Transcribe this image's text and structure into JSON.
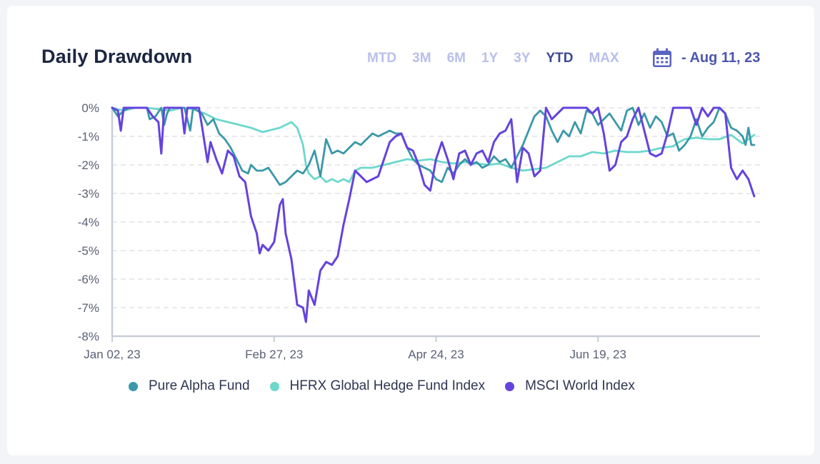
{
  "header": {
    "title": "Daily Drawdown",
    "ranges": [
      "MTD",
      "3M",
      "6M",
      "1Y",
      "3Y",
      "YTD",
      "MAX"
    ],
    "active_range": "YTD",
    "date_label": "- Aug 11, 23"
  },
  "colors": {
    "pure_alpha": "#3a98a8",
    "hfrx": "#6dd8cc",
    "msci": "#6543dd",
    "range_inactive": "#b9c0ea",
    "range_active": "#3b4a8f",
    "calendar_icon": "#5a63c0",
    "grid": "#d9dce4",
    "axis": "#c7ccd6"
  },
  "chart_data": {
    "type": "line",
    "ylim": [
      -8,
      0
    ],
    "y_ticks": [
      0,
      -1,
      -2,
      -3,
      -4,
      -5,
      -6,
      -7,
      -8
    ],
    "y_tick_labels": [
      "0%",
      "-1%",
      "-2%",
      "-3%",
      "-4%",
      "-5%",
      "-6%",
      "-7%",
      "-8%"
    ],
    "x_ticks": [
      {
        "label": "Jan 02, 23",
        "day": 0
      },
      {
        "label": "Feb 27, 23",
        "day": 56
      },
      {
        "label": "Apr 24, 23",
        "day": 112
      },
      {
        "label": "Jun 19, 23",
        "day": 168
      }
    ],
    "x_range": [
      0,
      224
    ],
    "grid": true,
    "legend_position": "bottom",
    "series": [
      {
        "name": "Pure Alpha Fund",
        "points": [
          [
            0,
            0
          ],
          [
            2,
            -0.3
          ],
          [
            4,
            -0.1
          ],
          [
            6,
            0
          ],
          [
            9,
            0
          ],
          [
            12,
            0
          ],
          [
            13,
            -0.4
          ],
          [
            15,
            -0.3
          ],
          [
            17,
            0
          ],
          [
            18,
            -0.6
          ],
          [
            19,
            -0.2
          ],
          [
            20,
            0
          ],
          [
            22,
            0
          ],
          [
            25,
            0
          ],
          [
            27,
            -0.8
          ],
          [
            28,
            0
          ],
          [
            31,
            -0.2
          ],
          [
            33,
            -0.6
          ],
          [
            35,
            -0.4
          ],
          [
            37,
            -0.9
          ],
          [
            39,
            -1.1
          ],
          [
            41,
            -1.4
          ],
          [
            43,
            -1.8
          ],
          [
            45,
            -2.2
          ],
          [
            47,
            -2.3
          ],
          [
            48,
            -2.0
          ],
          [
            50,
            -2.2
          ],
          [
            52,
            -2.2
          ],
          [
            54,
            -2.1
          ],
          [
            56,
            -2.4
          ],
          [
            58,
            -2.7
          ],
          [
            60,
            -2.6
          ],
          [
            62,
            -2.4
          ],
          [
            64,
            -2.2
          ],
          [
            66,
            -2.3
          ],
          [
            68,
            -2.0
          ],
          [
            70,
            -1.5
          ],
          [
            72,
            -2.4
          ],
          [
            74,
            -1.1
          ],
          [
            76,
            -1.6
          ],
          [
            78,
            -1.5
          ],
          [
            80,
            -1.6
          ],
          [
            82,
            -1.4
          ],
          [
            84,
            -1.2
          ],
          [
            86,
            -1.3
          ],
          [
            88,
            -1.1
          ],
          [
            90,
            -0.9
          ],
          [
            92,
            -1.0
          ],
          [
            94,
            -0.9
          ],
          [
            96,
            -0.8
          ],
          [
            98,
            -0.9
          ],
          [
            100,
            -0.9
          ],
          [
            102,
            -1.4
          ],
          [
            104,
            -1.8
          ],
          [
            106,
            -2.0
          ],
          [
            108,
            -2.1
          ],
          [
            110,
            -2.2
          ],
          [
            112,
            -2.5
          ],
          [
            114,
            -2.6
          ],
          [
            116,
            -2.1
          ],
          [
            118,
            -2.3
          ],
          [
            120,
            -2.0
          ],
          [
            122,
            -1.8
          ],
          [
            124,
            -2.0
          ],
          [
            126,
            -1.9
          ],
          [
            128,
            -2.1
          ],
          [
            130,
            -2.0
          ],
          [
            132,
            -1.7
          ],
          [
            134,
            -1.9
          ],
          [
            136,
            -1.8
          ],
          [
            138,
            -2.1
          ],
          [
            140,
            -1.7
          ],
          [
            142,
            -1.3
          ],
          [
            144,
            -0.8
          ],
          [
            146,
            -0.3
          ],
          [
            148,
            -0.1
          ],
          [
            150,
            -0.3
          ],
          [
            152,
            -0.8
          ],
          [
            154,
            -1.2
          ],
          [
            156,
            -0.8
          ],
          [
            158,
            -1.0
          ],
          [
            160,
            -0.5
          ],
          [
            162,
            -0.9
          ],
          [
            164,
            -0.1
          ],
          [
            166,
            -0.2
          ],
          [
            168,
            -0.6
          ],
          [
            170,
            -0.4
          ],
          [
            172,
            -0.2
          ],
          [
            174,
            -0.5
          ],
          [
            176,
            -0.8
          ],
          [
            178,
            -0.1
          ],
          [
            180,
            0
          ],
          [
            182,
            -0.6
          ],
          [
            184,
            -0.2
          ],
          [
            186,
            -0.7
          ],
          [
            188,
            -0.3
          ],
          [
            190,
            -0.5
          ],
          [
            192,
            -1.0
          ],
          [
            194,
            -0.9
          ],
          [
            196,
            -1.5
          ],
          [
            198,
            -1.3
          ],
          [
            200,
            -1.0
          ],
          [
            202,
            -0.4
          ],
          [
            204,
            -1.0
          ],
          [
            206,
            -0.7
          ],
          [
            208,
            -0.5
          ],
          [
            210,
            0
          ],
          [
            212,
            -0.2
          ],
          [
            214,
            -0.7
          ],
          [
            216,
            -0.8
          ],
          [
            218,
            -1.0
          ],
          [
            219,
            -1.3
          ],
          [
            220,
            -0.7
          ],
          [
            221,
            -1.3
          ],
          [
            222,
            -1.3
          ]
        ]
      },
      {
        "name": "HFRX Global Hedge Fund Index",
        "points": [
          [
            0,
            0
          ],
          [
            4,
            -0.1
          ],
          [
            8,
            0
          ],
          [
            12,
            0
          ],
          [
            16,
            -0.05
          ],
          [
            20,
            -0.1
          ],
          [
            24,
            0
          ],
          [
            28,
            -0.05
          ],
          [
            32,
            -0.2
          ],
          [
            36,
            -0.4
          ],
          [
            40,
            -0.5
          ],
          [
            44,
            -0.6
          ],
          [
            48,
            -0.7
          ],
          [
            52,
            -0.85
          ],
          [
            54,
            -0.8
          ],
          [
            56,
            -0.75
          ],
          [
            58,
            -0.7
          ],
          [
            60,
            -0.6
          ],
          [
            62,
            -0.5
          ],
          [
            64,
            -0.7
          ],
          [
            66,
            -1.3
          ],
          [
            67,
            -2.0
          ],
          [
            68,
            -2.3
          ],
          [
            70,
            -2.5
          ],
          [
            72,
            -2.4
          ],
          [
            74,
            -2.6
          ],
          [
            76,
            -2.5
          ],
          [
            78,
            -2.6
          ],
          [
            80,
            -2.5
          ],
          [
            82,
            -2.6
          ],
          [
            84,
            -2.2
          ],
          [
            86,
            -2.1
          ],
          [
            90,
            -2.1
          ],
          [
            94,
            -2.0
          ],
          [
            98,
            -1.9
          ],
          [
            102,
            -1.8
          ],
          [
            106,
            -1.85
          ],
          [
            110,
            -1.8
          ],
          [
            114,
            -1.9
          ],
          [
            118,
            -1.95
          ],
          [
            122,
            -1.9
          ],
          [
            126,
            -1.95
          ],
          [
            130,
            -2.0
          ],
          [
            134,
            -1.95
          ],
          [
            138,
            -2.1
          ],
          [
            142,
            -2.2
          ],
          [
            146,
            -2.15
          ],
          [
            150,
            -2.1
          ],
          [
            154,
            -1.9
          ],
          [
            158,
            -1.7
          ],
          [
            162,
            -1.7
          ],
          [
            166,
            -1.55
          ],
          [
            170,
            -1.6
          ],
          [
            174,
            -1.5
          ],
          [
            178,
            -1.55
          ],
          [
            182,
            -1.55
          ],
          [
            186,
            -1.5
          ],
          [
            190,
            -1.4
          ],
          [
            194,
            -1.35
          ],
          [
            196,
            -1.2
          ],
          [
            198,
            -1.1
          ],
          [
            202,
            -1.05
          ],
          [
            206,
            -1.1
          ],
          [
            210,
            -1.1
          ],
          [
            214,
            -0.95
          ],
          [
            218,
            -1.25
          ],
          [
            222,
            -0.95
          ]
        ]
      },
      {
        "name": "MSCI World Index",
        "points": [
          [
            0,
            0
          ],
          [
            2,
            -0.1
          ],
          [
            3,
            -0.8
          ],
          [
            4,
            0
          ],
          [
            8,
            0
          ],
          [
            12,
            0
          ],
          [
            14,
            -0.3
          ],
          [
            16,
            -0.5
          ],
          [
            17,
            -1.6
          ],
          [
            18,
            0
          ],
          [
            20,
            0
          ],
          [
            24,
            0
          ],
          [
            25,
            -0.9
          ],
          [
            26,
            0
          ],
          [
            30,
            0
          ],
          [
            31,
            -0.6
          ],
          [
            33,
            -1.9
          ],
          [
            34,
            -1.2
          ],
          [
            36,
            -1.8
          ],
          [
            38,
            -2.3
          ],
          [
            40,
            -1.5
          ],
          [
            42,
            -1.7
          ],
          [
            44,
            -2.4
          ],
          [
            46,
            -2.6
          ],
          [
            48,
            -3.8
          ],
          [
            50,
            -4.4
          ],
          [
            51,
            -5.1
          ],
          [
            52,
            -4.8
          ],
          [
            54,
            -5.0
          ],
          [
            56,
            -4.7
          ],
          [
            58,
            -3.4
          ],
          [
            59,
            -3.2
          ],
          [
            60,
            -4.4
          ],
          [
            62,
            -5.3
          ],
          [
            64,
            -6.9
          ],
          [
            66,
            -7.0
          ],
          [
            67,
            -7.5
          ],
          [
            68,
            -6.4
          ],
          [
            70,
            -6.9
          ],
          [
            72,
            -5.7
          ],
          [
            74,
            -5.4
          ],
          [
            76,
            -5.5
          ],
          [
            78,
            -5.2
          ],
          [
            80,
            -4.1
          ],
          [
            82,
            -3.2
          ],
          [
            84,
            -2.2
          ],
          [
            86,
            -2.4
          ],
          [
            88,
            -2.6
          ],
          [
            90,
            -2.5
          ],
          [
            92,
            -2.4
          ],
          [
            94,
            -1.8
          ],
          [
            96,
            -1.2
          ],
          [
            98,
            -1.0
          ],
          [
            100,
            -0.9
          ],
          [
            102,
            -1.4
          ],
          [
            104,
            -1.5
          ],
          [
            106,
            -2.0
          ],
          [
            108,
            -2.7
          ],
          [
            110,
            -2.9
          ],
          [
            112,
            -1.8
          ],
          [
            114,
            -1.2
          ],
          [
            116,
            -1.8
          ],
          [
            118,
            -2.5
          ],
          [
            120,
            -1.6
          ],
          [
            122,
            -1.5
          ],
          [
            124,
            -2.0
          ],
          [
            126,
            -1.6
          ],
          [
            128,
            -1.5
          ],
          [
            130,
            -1.9
          ],
          [
            132,
            -1.2
          ],
          [
            134,
            -0.9
          ],
          [
            136,
            -0.8
          ],
          [
            138,
            -0.4
          ],
          [
            140,
            -2.6
          ],
          [
            142,
            -1.4
          ],
          [
            144,
            -1.6
          ],
          [
            146,
            -2.4
          ],
          [
            148,
            -2.2
          ],
          [
            150,
            0
          ],
          [
            152,
            -0.4
          ],
          [
            154,
            -0.2
          ],
          [
            156,
            0
          ],
          [
            160,
            0
          ],
          [
            164,
            0
          ],
          [
            166,
            -0.2
          ],
          [
            168,
            0
          ],
          [
            170,
            -0.9
          ],
          [
            172,
            -2.2
          ],
          [
            174,
            -2.0
          ],
          [
            176,
            -1.2
          ],
          [
            178,
            -1.0
          ],
          [
            180,
            -0.4
          ],
          [
            182,
            0
          ],
          [
            184,
            -0.8
          ],
          [
            186,
            -1.6
          ],
          [
            188,
            -1.7
          ],
          [
            190,
            -1.6
          ],
          [
            192,
            -0.9
          ],
          [
            194,
            0
          ],
          [
            198,
            0
          ],
          [
            200,
            0
          ],
          [
            202,
            -0.6
          ],
          [
            204,
            0
          ],
          [
            206,
            -0.3
          ],
          [
            208,
            0
          ],
          [
            210,
            0
          ],
          [
            212,
            -0.2
          ],
          [
            214,
            -2.1
          ],
          [
            216,
            -2.5
          ],
          [
            218,
            -2.2
          ],
          [
            220,
            -2.5
          ],
          [
            222,
            -3.1
          ]
        ]
      }
    ]
  }
}
